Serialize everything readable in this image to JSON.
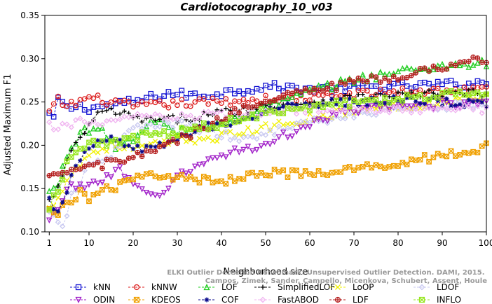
{
  "chart_data": {
    "type": "line",
    "title": "Cardiotocography_10_v03",
    "xlabel": "Neighborhood size",
    "ylabel": "Adjusted Maximum F1",
    "xlim": [
      0,
      100
    ],
    "ylim": [
      0.1,
      0.35
    ],
    "x_ticks": [
      1,
      10,
      20,
      30,
      40,
      50,
      60,
      70,
      80,
      90,
      100
    ],
    "y_ticks": [
      "0.10",
      "0.15",
      "0.20",
      "0.25",
      "0.30",
      "0.35"
    ],
    "grid": false,
    "legend_position": "bottom",
    "watermark": "ELKI Outlier Detection Benchmark: Unsupervised Outlier Detection. DAMI, 2015. Campos, Zimek, Sander, Campello, Micenkova, Schubert, Assent, Houle",
    "series": [
      {
        "name": "kNN",
        "color": "#1414d2",
        "marker": "square",
        "knots": [
          [
            1,
            0.236
          ],
          [
            2,
            0.228
          ],
          [
            3,
            0.255
          ],
          [
            5,
            0.242
          ],
          [
            7,
            0.245
          ],
          [
            10,
            0.243
          ],
          [
            20,
            0.25
          ],
          [
            28,
            0.26
          ],
          [
            35,
            0.257
          ],
          [
            50,
            0.268
          ],
          [
            60,
            0.265
          ],
          [
            80,
            0.268
          ],
          [
            100,
            0.272
          ]
        ]
      },
      {
        "name": "kNNW",
        "color": "#dc1e1e",
        "marker": "circle",
        "knots": [
          [
            1,
            0.238
          ],
          [
            3,
            0.252
          ],
          [
            5,
            0.245
          ],
          [
            10,
            0.255
          ],
          [
            20,
            0.245
          ],
          [
            30,
            0.248
          ],
          [
            45,
            0.252
          ],
          [
            60,
            0.255
          ],
          [
            80,
            0.262
          ],
          [
            100,
            0.265
          ]
        ]
      },
      {
        "name": "LOF",
        "color": "#1ecd1e",
        "marker": "triangle-up",
        "knots": [
          [
            1,
            0.145
          ],
          [
            3,
            0.155
          ],
          [
            5,
            0.19
          ],
          [
            8,
            0.215
          ],
          [
            12,
            0.22
          ],
          [
            16,
            0.2
          ],
          [
            20,
            0.205
          ],
          [
            25,
            0.23
          ],
          [
            30,
            0.215
          ],
          [
            40,
            0.225
          ],
          [
            50,
            0.245
          ],
          [
            60,
            0.262
          ],
          [
            70,
            0.276
          ],
          [
            80,
            0.285
          ],
          [
            90,
            0.292
          ],
          [
            100,
            0.295
          ]
        ]
      },
      {
        "name": "SimplifiedLOF",
        "color": "#000000",
        "marker": "plus",
        "knots": [
          [
            1,
            0.135
          ],
          [
            3,
            0.15
          ],
          [
            5,
            0.18
          ],
          [
            8,
            0.21
          ],
          [
            12,
            0.235
          ],
          [
            15,
            0.24
          ],
          [
            20,
            0.232
          ],
          [
            25,
            0.228
          ],
          [
            30,
            0.23
          ],
          [
            40,
            0.238
          ],
          [
            50,
            0.245
          ],
          [
            60,
            0.25
          ],
          [
            70,
            0.255
          ],
          [
            80,
            0.258
          ],
          [
            100,
            0.26
          ]
        ]
      },
      {
        "name": "LoOP",
        "color": "#f0f000",
        "marker": "x",
        "knots": [
          [
            1,
            0.125
          ],
          [
            5,
            0.16
          ],
          [
            10,
            0.19
          ],
          [
            15,
            0.2
          ],
          [
            20,
            0.195
          ],
          [
            30,
            0.205
          ],
          [
            40,
            0.21
          ],
          [
            50,
            0.22
          ],
          [
            60,
            0.232
          ],
          [
            70,
            0.24
          ],
          [
            80,
            0.245
          ],
          [
            90,
            0.25
          ],
          [
            100,
            0.255
          ]
        ]
      },
      {
        "name": "LDOF",
        "color": "#c8c8f0",
        "marker": "diamond",
        "knots": [
          [
            1,
            0.12
          ],
          [
            4,
            0.105
          ],
          [
            6,
            0.14
          ],
          [
            10,
            0.175
          ],
          [
            15,
            0.19
          ],
          [
            20,
            0.22
          ],
          [
            30,
            0.225
          ],
          [
            38,
            0.215
          ],
          [
            45,
            0.205
          ],
          [
            55,
            0.222
          ],
          [
            65,
            0.23
          ],
          [
            80,
            0.242
          ],
          [
            90,
            0.245
          ],
          [
            100,
            0.248
          ]
        ]
      },
      {
        "name": "ODIN",
        "color": "#a01ec8",
        "marker": "triangle-down",
        "knots": [
          [
            1,
            0.11
          ],
          [
            3,
            0.13
          ],
          [
            6,
            0.155
          ],
          [
            8,
            0.15
          ],
          [
            12,
            0.16
          ],
          [
            17,
            0.17
          ],
          [
            22,
            0.145
          ],
          [
            25,
            0.14
          ],
          [
            30,
            0.163
          ],
          [
            40,
            0.19
          ],
          [
            50,
            0.2
          ],
          [
            60,
            0.225
          ],
          [
            70,
            0.24
          ],
          [
            80,
            0.245
          ],
          [
            100,
            0.25
          ]
        ]
      },
      {
        "name": "KDEOS",
        "color": "#f0a000",
        "marker": "square-x",
        "knots": [
          [
            1,
            0.123
          ],
          [
            3,
            0.12
          ],
          [
            5,
            0.135
          ],
          [
            8,
            0.145
          ],
          [
            10,
            0.14
          ],
          [
            15,
            0.15
          ],
          [
            20,
            0.16
          ],
          [
            25,
            0.168
          ],
          [
            30,
            0.162
          ],
          [
            40,
            0.158
          ],
          [
            45,
            0.165
          ],
          [
            50,
            0.17
          ],
          [
            60,
            0.165
          ],
          [
            70,
            0.172
          ],
          [
            80,
            0.18
          ],
          [
            90,
            0.188
          ],
          [
            100,
            0.198
          ]
        ]
      },
      {
        "name": "COF",
        "color": "#0a0a8c",
        "marker": "asterisk",
        "knots": [
          [
            1,
            0.135
          ],
          [
            3,
            0.12
          ],
          [
            6,
            0.165
          ],
          [
            10,
            0.195
          ],
          [
            15,
            0.21
          ],
          [
            20,
            0.195
          ],
          [
            28,
            0.2
          ],
          [
            35,
            0.22
          ],
          [
            45,
            0.23
          ],
          [
            50,
            0.24
          ],
          [
            60,
            0.248
          ],
          [
            70,
            0.25
          ],
          [
            80,
            0.252
          ],
          [
            90,
            0.25
          ],
          [
            100,
            0.246
          ]
        ]
      },
      {
        "name": "FastABOD",
        "color": "#f0b4f0",
        "marker": "diamond",
        "knots": [
          [
            1,
            0.222
          ],
          [
            4,
            0.22
          ],
          [
            8,
            0.23
          ],
          [
            12,
            0.225
          ],
          [
            20,
            0.232
          ],
          [
            30,
            0.232
          ],
          [
            40,
            0.235
          ],
          [
            50,
            0.238
          ],
          [
            60,
            0.24
          ],
          [
            70,
            0.242
          ],
          [
            80,
            0.242
          ],
          [
            90,
            0.242
          ],
          [
            100,
            0.242
          ]
        ]
      },
      {
        "name": "LDF",
        "color": "#b41e1e",
        "marker": "circle-plus",
        "knots": [
          [
            1,
            0.16
          ],
          [
            5,
            0.17
          ],
          [
            10,
            0.175
          ],
          [
            15,
            0.18
          ],
          [
            20,
            0.185
          ],
          [
            30,
            0.205
          ],
          [
            40,
            0.23
          ],
          [
            50,
            0.255
          ],
          [
            60,
            0.262
          ],
          [
            70,
            0.272
          ],
          [
            80,
            0.28
          ],
          [
            90,
            0.29
          ],
          [
            100,
            0.3
          ]
        ]
      },
      {
        "name": "INFLO",
        "color": "#96e61e",
        "marker": "square-x",
        "knots": [
          [
            1,
            0.13
          ],
          [
            3,
            0.15
          ],
          [
            6,
            0.19
          ],
          [
            10,
            0.205
          ],
          [
            15,
            0.2
          ],
          [
            20,
            0.21
          ],
          [
            30,
            0.215
          ],
          [
            40,
            0.225
          ],
          [
            50,
            0.238
          ],
          [
            60,
            0.245
          ],
          [
            70,
            0.25
          ],
          [
            80,
            0.255
          ],
          [
            90,
            0.258
          ],
          [
            100,
            0.26
          ]
        ]
      }
    ]
  }
}
